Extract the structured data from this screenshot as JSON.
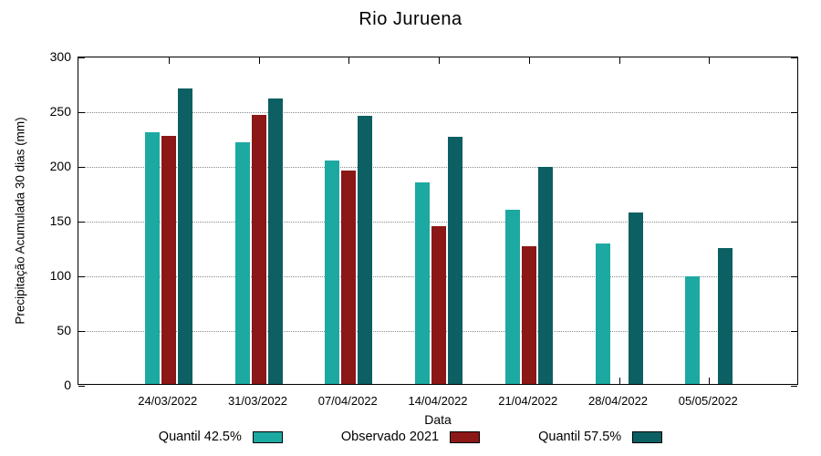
{
  "chart_data": {
    "type": "bar",
    "title": "Rio Juruena",
    "xlabel": "Data",
    "ylabel": "Precipitação Acumulada 30 dias (mm)",
    "ylim": [
      0,
      300
    ],
    "yticks": [
      0,
      50,
      100,
      150,
      200,
      250,
      300
    ],
    "grid": true,
    "legend_position": "bottom",
    "categories": [
      "24/03/2022",
      "31/03/2022",
      "07/04/2022",
      "14/04/2022",
      "21/04/2022",
      "28/04/2022",
      "05/05/2022"
    ],
    "series": [
      {
        "name": "Quantil 42.5%",
        "color": "#1CA9A2",
        "values": [
          230,
          221,
          204,
          184,
          159,
          128,
          98
        ]
      },
      {
        "name": "Observado 2021",
        "color": "#8B1717",
        "values": [
          227,
          246,
          195,
          144,
          126,
          null,
          null
        ]
      },
      {
        "name": "Quantil 57.5%",
        "color": "#0C5F62",
        "values": [
          270,
          261,
          245,
          226,
          198,
          157,
          124
        ]
      }
    ]
  }
}
